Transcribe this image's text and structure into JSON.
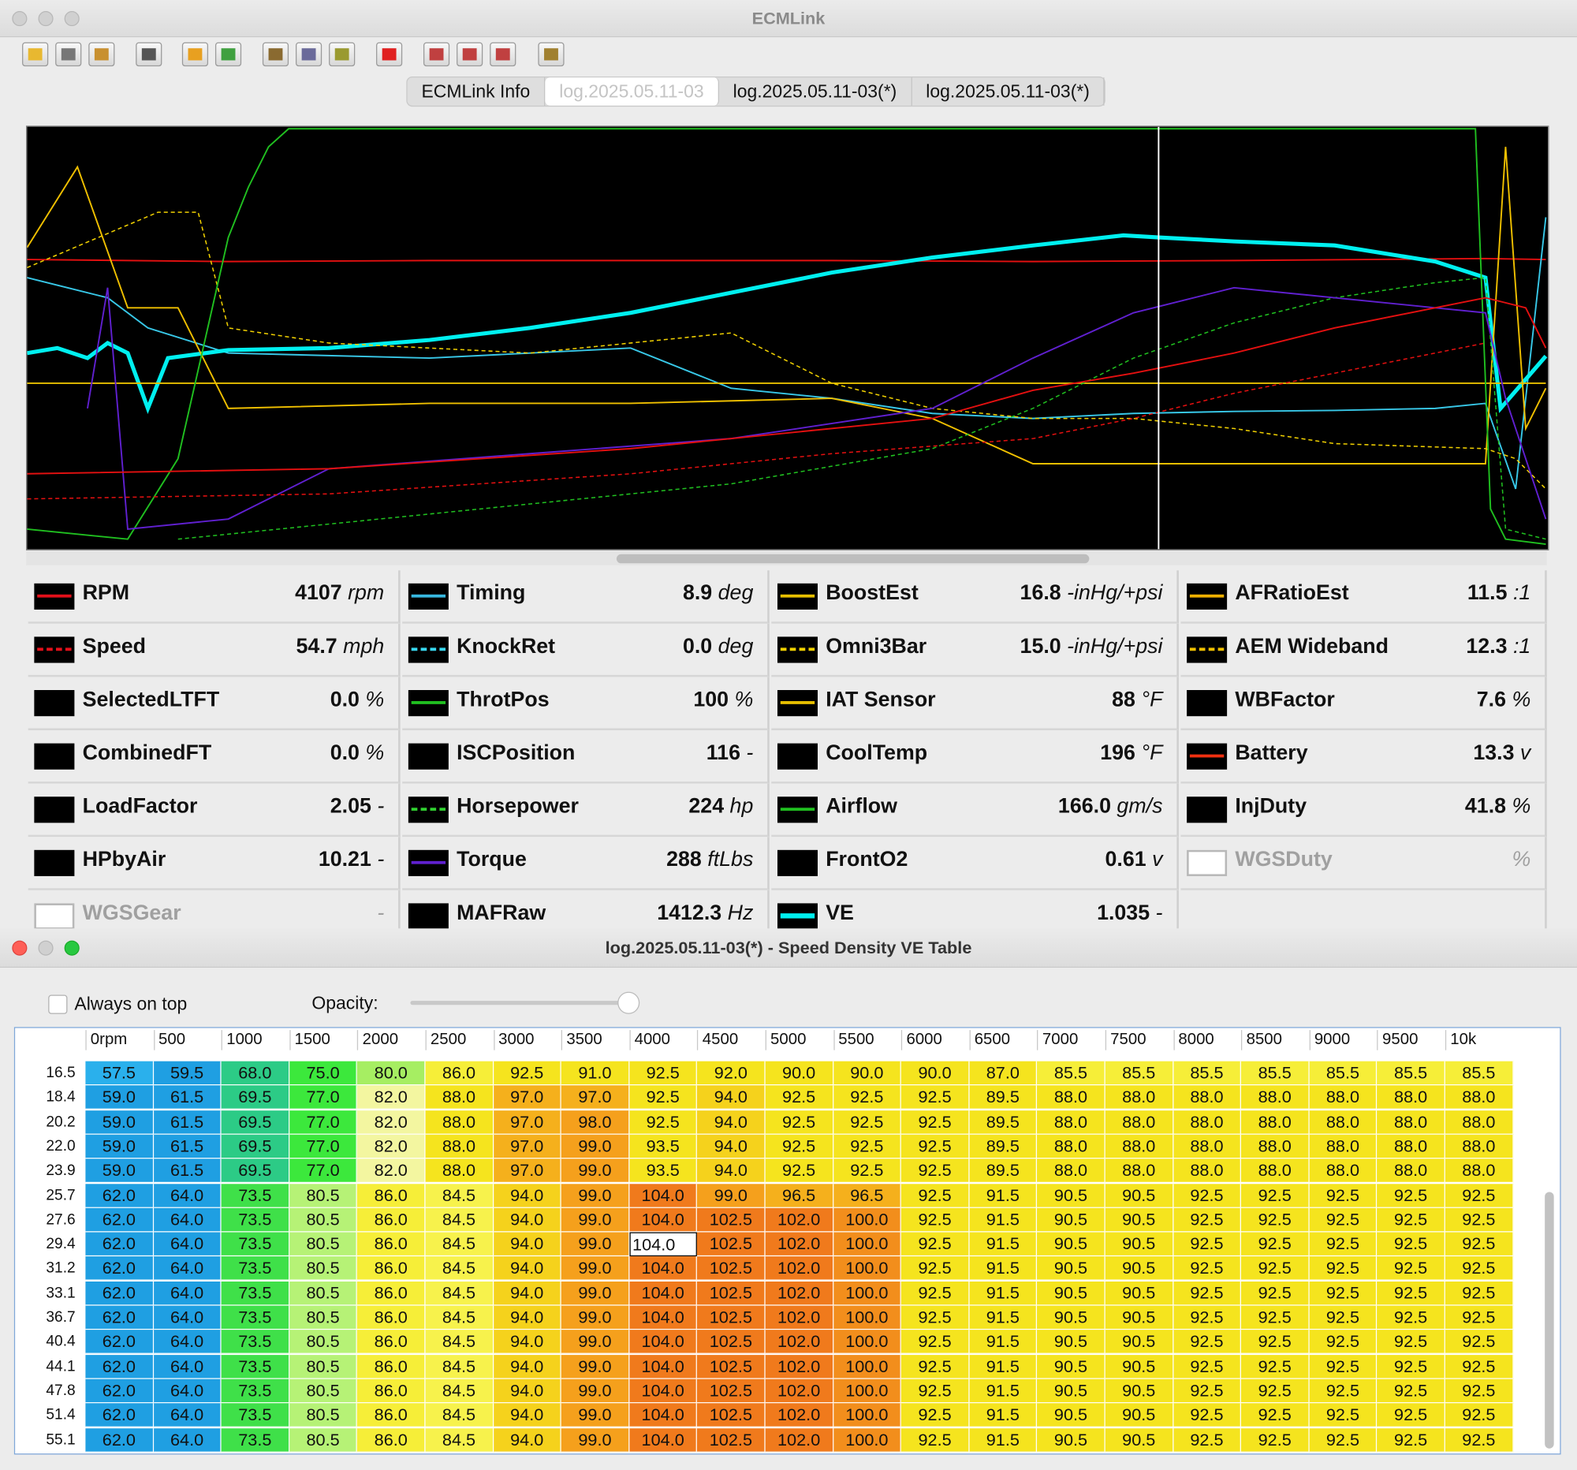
{
  "app_window": {
    "title": "ECMLink",
    "tabs": [
      "ECMLink Info",
      "log.2025.05.11-03",
      "log.2025.05.11-03(*)",
      "log.2025.05.11-03(*)"
    ],
    "active_tab": 1
  },
  "gauges": [
    [
      {
        "name": "RPM",
        "value": "4107",
        "unit": "rpm",
        "color": "#e3101a",
        "dashed": false
      },
      {
        "name": "Speed",
        "value": "54.7",
        "unit": "mph",
        "color": "#e3101a",
        "dashed": true
      },
      {
        "name": "SelectedLTFT",
        "value": "0.0",
        "unit": "%",
        "color": "#000000",
        "dashed": false
      },
      {
        "name": "CombinedFT",
        "value": "0.0",
        "unit": "%",
        "color": "#000000",
        "dashed": false
      },
      {
        "name": "LoadFactor",
        "value": "2.05",
        "unit": "-",
        "color": "#000000",
        "dashed": false
      },
      {
        "name": "HPbyAir",
        "value": "10.21",
        "unit": "-",
        "color": "#000000",
        "dashed": false
      },
      {
        "name": "WGSGear",
        "unit": "-",
        "enabled": false
      }
    ],
    [
      {
        "name": "Timing",
        "value": "8.9",
        "unit": "deg",
        "color": "#38b8e0",
        "dashed": false
      },
      {
        "name": "KnockRet",
        "value": "0.0",
        "unit": "deg",
        "color": "#38d8f0",
        "dashed": true
      },
      {
        "name": "ThrotPos",
        "value": "100",
        "unit": "%",
        "color": "#20c020",
        "dashed": false
      },
      {
        "name": "ISCPosition",
        "value": "116",
        "unit": "-",
        "color": "#000000",
        "dashed": false
      },
      {
        "name": "Horsepower",
        "value": "224",
        "unit": "hp",
        "color": "#30d030",
        "dashed": true
      },
      {
        "name": "Torque",
        "value": "288",
        "unit": "ftLbs",
        "color": "#6020d0",
        "dashed": false
      },
      {
        "name": "MAFRaw",
        "value": "1412.3",
        "unit": "Hz",
        "color": "#000000",
        "dashed": false
      }
    ],
    [
      {
        "name": "BoostEst",
        "value": "16.8",
        "unit": "-inHg/+psi",
        "color": "#e8c000",
        "dashed": false
      },
      {
        "name": "Omni3Bar",
        "value": "15.0",
        "unit": "-inHg/+psi",
        "color": "#f0d000",
        "dashed": true
      },
      {
        "name": "IAT Sensor",
        "value": "88",
        "unit": "°F",
        "color": "#e8c000",
        "dashed": false
      },
      {
        "name": "CoolTemp",
        "value": "196",
        "unit": "°F",
        "color": "#000000",
        "dashed": false
      },
      {
        "name": "Airflow",
        "value": "166.0",
        "unit": "gm/s",
        "color": "#20c020",
        "dashed": false
      },
      {
        "name": "FrontO2",
        "value": "0.61",
        "unit": "v",
        "color": "#000000",
        "dashed": false
      },
      {
        "name": "VE",
        "value": "1.035",
        "unit": "-",
        "color": "#00f0f0",
        "dashed": false
      }
    ],
    [
      {
        "name": "AFRatioEst",
        "value": "11.5",
        "unit": ":1",
        "color": "#f0b000",
        "dashed": false
      },
      {
        "name": "AEM Wideband",
        "value": "12.3",
        "unit": ":1",
        "color": "#f0c000",
        "dashed": true
      },
      {
        "name": "WBFactor",
        "value": "7.6",
        "unit": "%",
        "color": "#000000",
        "dashed": false
      },
      {
        "name": "Battery",
        "value": "13.3",
        "unit": "v",
        "color": "#f03010",
        "dashed": false
      },
      {
        "name": "InjDuty",
        "value": "41.8",
        "unit": "%",
        "color": "#000000",
        "dashed": false
      },
      {
        "name": "WGSDuty",
        "unit": "%",
        "enabled": false
      }
    ]
  ],
  "ve_window": {
    "title": "log.2025.05.11-03(*) - Speed Density VE Table",
    "always_on_top": "Always on top",
    "opacity": "Opacity:",
    "columns": [
      "0rpm",
      "500",
      "1000",
      "1500",
      "2000",
      "2500",
      "3000",
      "3500",
      "4000",
      "4500",
      "5000",
      "5500",
      "6000",
      "6500",
      "7000",
      "7500",
      "8000",
      "8500",
      "9000",
      "9500",
      "10k"
    ],
    "selected": [
      7,
      8
    ],
    "rows": [
      {
        "label": "16.5",
        "cells": [
          "57.5",
          "59.5",
          "68.0",
          "75.0",
          "80.0",
          "86.0",
          "92.5",
          "91.0",
          "92.5",
          "92.0",
          "90.0",
          "90.0",
          "90.0",
          "87.0",
          "85.5",
          "85.5",
          "85.5",
          "85.5",
          "85.5",
          "85.5",
          "85.5"
        ]
      },
      {
        "label": "18.4",
        "cells": [
          "59.0",
          "61.5",
          "69.5",
          "77.0",
          "82.0",
          "88.0",
          "97.0",
          "97.0",
          "92.5",
          "94.0",
          "92.5",
          "92.5",
          "92.5",
          "89.5",
          "88.0",
          "88.0",
          "88.0",
          "88.0",
          "88.0",
          "88.0",
          "88.0"
        ]
      },
      {
        "label": "20.2",
        "cells": [
          "59.0",
          "61.5",
          "69.5",
          "77.0",
          "82.0",
          "88.0",
          "97.0",
          "98.0",
          "92.5",
          "94.0",
          "92.5",
          "92.5",
          "92.5",
          "89.5",
          "88.0",
          "88.0",
          "88.0",
          "88.0",
          "88.0",
          "88.0",
          "88.0"
        ]
      },
      {
        "label": "22.0",
        "cells": [
          "59.0",
          "61.5",
          "69.5",
          "77.0",
          "82.0",
          "88.0",
          "97.0",
          "99.0",
          "93.5",
          "94.0",
          "92.5",
          "92.5",
          "92.5",
          "89.5",
          "88.0",
          "88.0",
          "88.0",
          "88.0",
          "88.0",
          "88.0",
          "88.0"
        ]
      },
      {
        "label": "23.9",
        "cells": [
          "59.0",
          "61.5",
          "69.5",
          "77.0",
          "82.0",
          "88.0",
          "97.0",
          "99.0",
          "93.5",
          "94.0",
          "92.5",
          "92.5",
          "92.5",
          "89.5",
          "88.0",
          "88.0",
          "88.0",
          "88.0",
          "88.0",
          "88.0",
          "88.0"
        ]
      },
      {
        "label": "25.7",
        "cells": [
          "62.0",
          "64.0",
          "73.5",
          "80.5",
          "86.0",
          "84.5",
          "94.0",
          "99.0",
          "104.0",
          "99.0",
          "96.5",
          "96.5",
          "92.5",
          "91.5",
          "90.5",
          "90.5",
          "92.5",
          "92.5",
          "92.5",
          "92.5",
          "92.5"
        ]
      },
      {
        "label": "27.6",
        "cells": [
          "62.0",
          "64.0",
          "73.5",
          "80.5",
          "86.0",
          "84.5",
          "94.0",
          "99.0",
          "104.0",
          "102.5",
          "102.0",
          "100.0",
          "92.5",
          "91.5",
          "90.5",
          "90.5",
          "92.5",
          "92.5",
          "92.5",
          "92.5",
          "92.5"
        ]
      },
      {
        "label": "29.4",
        "cells": [
          "62.0",
          "64.0",
          "73.5",
          "80.5",
          "86.0",
          "84.5",
          "94.0",
          "99.0",
          "104.0",
          "102.5",
          "102.0",
          "100.0",
          "92.5",
          "91.5",
          "90.5",
          "90.5",
          "92.5",
          "92.5",
          "92.5",
          "92.5",
          "92.5"
        ]
      },
      {
        "label": "31.2",
        "cells": [
          "62.0",
          "64.0",
          "73.5",
          "80.5",
          "86.0",
          "84.5",
          "94.0",
          "99.0",
          "104.0",
          "102.5",
          "102.0",
          "100.0",
          "92.5",
          "91.5",
          "90.5",
          "90.5",
          "92.5",
          "92.5",
          "92.5",
          "92.5",
          "92.5"
        ]
      },
      {
        "label": "33.1",
        "cells": [
          "62.0",
          "64.0",
          "73.5",
          "80.5",
          "86.0",
          "84.5",
          "94.0",
          "99.0",
          "104.0",
          "102.5",
          "102.0",
          "100.0",
          "92.5",
          "91.5",
          "90.5",
          "90.5",
          "92.5",
          "92.5",
          "92.5",
          "92.5",
          "92.5"
        ]
      },
      {
        "label": "36.7",
        "cells": [
          "62.0",
          "64.0",
          "73.5",
          "80.5",
          "86.0",
          "84.5",
          "94.0",
          "99.0",
          "104.0",
          "102.5",
          "102.0",
          "100.0",
          "92.5",
          "91.5",
          "90.5",
          "90.5",
          "92.5",
          "92.5",
          "92.5",
          "92.5",
          "92.5"
        ]
      },
      {
        "label": "40.4",
        "cells": [
          "62.0",
          "64.0",
          "73.5",
          "80.5",
          "86.0",
          "84.5",
          "94.0",
          "99.0",
          "104.0",
          "102.5",
          "102.0",
          "100.0",
          "92.5",
          "91.5",
          "90.5",
          "90.5",
          "92.5",
          "92.5",
          "92.5",
          "92.5",
          "92.5"
        ]
      },
      {
        "label": "44.1",
        "cells": [
          "62.0",
          "64.0",
          "73.5",
          "80.5",
          "86.0",
          "84.5",
          "94.0",
          "99.0",
          "104.0",
          "102.5",
          "102.0",
          "100.0",
          "92.5",
          "91.5",
          "90.5",
          "90.5",
          "92.5",
          "92.5",
          "92.5",
          "92.5",
          "92.5"
        ]
      },
      {
        "label": "47.8",
        "cells": [
          "62.0",
          "64.0",
          "73.5",
          "80.5",
          "86.0",
          "84.5",
          "94.0",
          "99.0",
          "104.0",
          "102.5",
          "102.0",
          "100.0",
          "92.5",
          "91.5",
          "90.5",
          "90.5",
          "92.5",
          "92.5",
          "92.5",
          "92.5",
          "92.5"
        ]
      },
      {
        "label": "51.4",
        "cells": [
          "62.0",
          "64.0",
          "73.5",
          "80.5",
          "86.0",
          "84.5",
          "94.0",
          "99.0",
          "104.0",
          "102.5",
          "102.0",
          "100.0",
          "92.5",
          "91.5",
          "90.5",
          "90.5",
          "92.5",
          "92.5",
          "92.5",
          "92.5",
          "92.5"
        ]
      },
      {
        "label": "55.1",
        "cells": [
          "62.0",
          "64.0",
          "73.5",
          "80.5",
          "86.0",
          "84.5",
          "94.0",
          "99.0",
          "104.0",
          "102.5",
          "102.0",
          "100.0",
          "92.5",
          "91.5",
          "90.5",
          "90.5",
          "92.5",
          "92.5",
          "92.5",
          "92.5",
          "92.5"
        ]
      }
    ]
  }
}
